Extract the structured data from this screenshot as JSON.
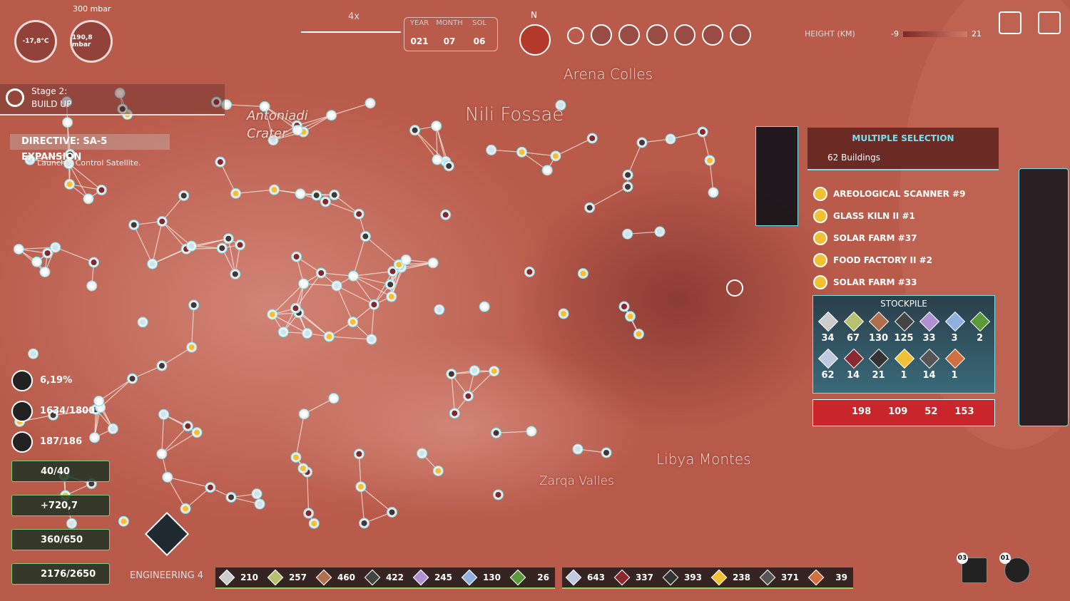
{
  "hud": {
    "pressure_max": "300 mbar",
    "temperature": "-17,8°C",
    "pressure": "190,8 mbar"
  },
  "stage": {
    "title": "Stage 2:",
    "name": "BUILD UP"
  },
  "directive": {
    "title": "DIRECTIVE: SA-5 EXPANSION",
    "task": "Launch a Control Satellite."
  },
  "time": {
    "speed": "4x",
    "labels": [
      "YEAR",
      "MONTH",
      "SOL"
    ],
    "values": [
      "021",
      "07",
      "06"
    ]
  },
  "compass": "N",
  "map_labels": [
    "Arena Colles",
    "Nili Fossae",
    "Antoniadi Crater",
    "Libya Montes",
    "Zarqa Valles"
  ],
  "height_legend": {
    "label": "HEIGHT (KM)",
    "min": "-9",
    "max": "21"
  },
  "selection": {
    "title": "MULTIPLE SELECTION",
    "count": "62 Buildings",
    "items": [
      "AREOLOGICAL SCANNER #9",
      "GLASS KILN II #1",
      "SOLAR FARM #37",
      "FOOD FACTORY II #2",
      "SOLAR FARM #33"
    ],
    "stockpile_title": "STOCKPILE",
    "stockpile": [
      34,
      67,
      130,
      125,
      33,
      3,
      2,
      62,
      14,
      21,
      1,
      14,
      1
    ],
    "costs": [
      198,
      109,
      52,
      153
    ]
  },
  "stats": [
    "6,19%",
    "1634/1800",
    "187/186"
  ],
  "bars": [
    "40/40",
    "+720,7",
    "360/650",
    "2176/2650"
  ],
  "research": "ENGINEERING 4",
  "resources": [
    210,
    257,
    460,
    422,
    245,
    130,
    26,
    643,
    337,
    393,
    238,
    371,
    39
  ],
  "notifications": [
    "03",
    "01"
  ]
}
